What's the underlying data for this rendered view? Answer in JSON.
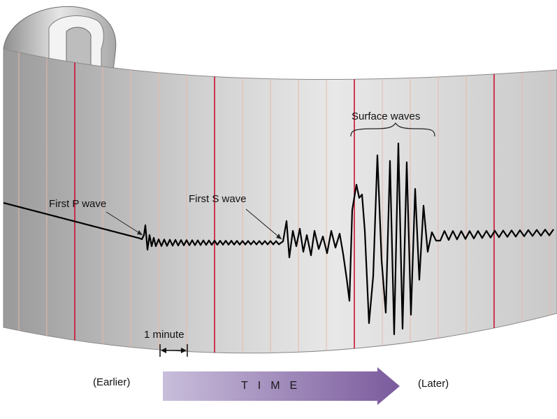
{
  "diagram": {
    "labels": {
      "first_p_wave": "First P wave",
      "first_s_wave": "First S wave",
      "surface_waves": "Surface waves",
      "one_minute": "1 minute",
      "earlier": "(Earlier)",
      "later": "(Later)",
      "time": "TIME"
    },
    "colors": {
      "paper_dark": "#9d9d9d",
      "paper_light": "#e9e9e9",
      "minute_line": "#e8b8a8",
      "major_line": "#c8102e",
      "trace": "#000000",
      "arrow_start": "#b8a9cc",
      "arrow_end": "#7d5c9e"
    },
    "icons": [
      "double-headed-arrow-icon",
      "time-arrow-icon",
      "paper-curl-icon"
    ]
  }
}
